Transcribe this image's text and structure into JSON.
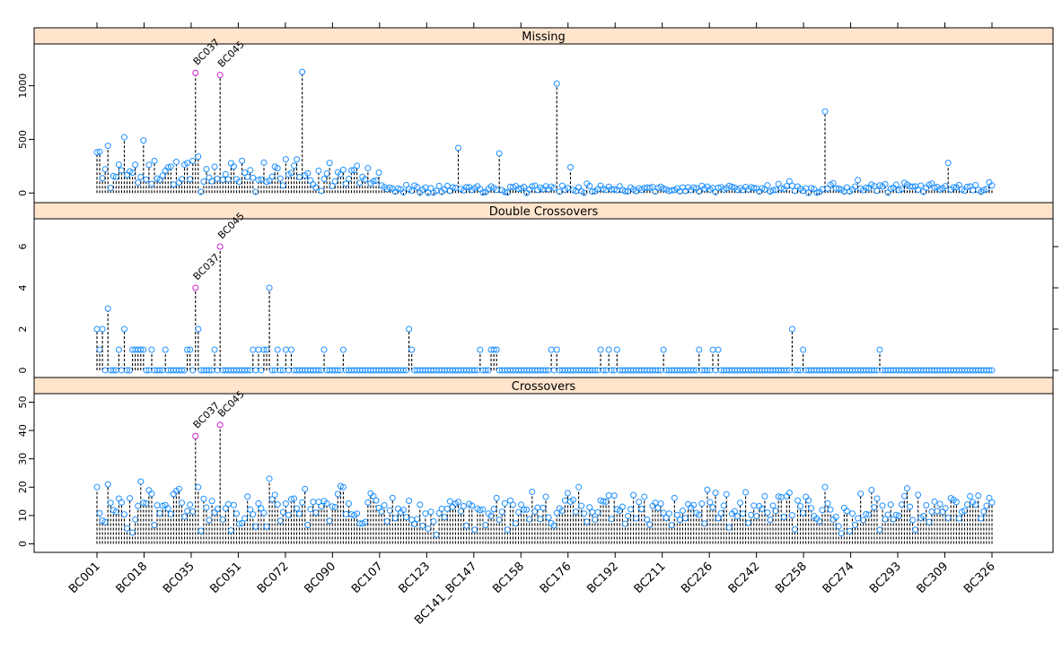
{
  "chart_data": {
    "type": "scatter",
    "style": "lollipop",
    "title": "",
    "xlabel": "",
    "ylabel": "",
    "grid": false,
    "colors": {
      "point": "#1e90ff",
      "highlight": "#d020d0",
      "strip_bg": "#ffe5cc",
      "stem": "#000000"
    },
    "n_individuals": 328,
    "x_tick_labels": [
      "BC001",
      "BC018",
      "BC035",
      "BC051",
      "BC072",
      "BC090",
      "BC107",
      "BC123",
      "BC141_BC147",
      "BC158",
      "BC176",
      "BC192",
      "BC211",
      "BC226",
      "BC242",
      "BC258",
      "BC274",
      "BC293",
      "BC309",
      "BC326"
    ],
    "panels": [
      {
        "strip": "Missing",
        "ylim": [
          -90,
          1390
        ],
        "yticks": [
          0,
          500,
          1000
        ],
        "tick_side": "left",
        "seed": 11,
        "segments": [
          {
            "from": 1,
            "to": 75,
            "mean": 180,
            "sd": 75
          },
          {
            "from": 76,
            "to": 104,
            "mean": 155,
            "sd": 60
          },
          {
            "from": 105,
            "to": 190,
            "mean": 45,
            "sd": 20
          },
          {
            "from": 191,
            "to": 260,
            "mean": 40,
            "sd": 17
          },
          {
            "from": 261,
            "to": 328,
            "mean": 45,
            "sd": 22
          }
        ],
        "peaks": [
          {
            "i": 37,
            "v": 1120,
            "highlight": true,
            "label": "BC037"
          },
          {
            "i": 46,
            "v": 1100,
            "highlight": true,
            "label": "BC045"
          },
          {
            "i": 76,
            "v": 1130
          },
          {
            "i": 169,
            "v": 1020
          },
          {
            "i": 267,
            "v": 760
          },
          {
            "i": 133,
            "v": 420
          },
          {
            "i": 148,
            "v": 370
          },
          {
            "i": 312,
            "v": 280
          },
          {
            "i": 11,
            "v": 520
          },
          {
            "i": 18,
            "v": 490
          },
          {
            "i": 5,
            "v": 440
          },
          {
            "i": 38,
            "v": 340
          },
          {
            "i": 54,
            "v": 300
          },
          {
            "i": 86,
            "v": 280
          },
          {
            "i": 22,
            "v": 300
          },
          {
            "i": 30,
            "v": 290
          },
          {
            "i": 174,
            "v": 240
          },
          {
            "i": 254,
            "v": 110
          },
          {
            "i": 279,
            "v": 120
          },
          {
            "i": 1,
            "v": 380
          },
          {
            "i": 2,
            "v": 385
          },
          {
            "i": 39,
            "v": 10
          },
          {
            "i": 59,
            "v": 10
          },
          {
            "i": 83,
            "v": 20
          },
          {
            "i": 130,
            "v": 20
          },
          {
            "i": 150,
            "v": 10
          }
        ]
      },
      {
        "strip": "Double Crossovers",
        "ylim": [
          -0.35,
          7.35
        ],
        "yticks": [
          0,
          2,
          4,
          6
        ],
        "tick_side": "right",
        "seed": 7,
        "segments": [
          {
            "from": 1,
            "to": 328,
            "mean": 0,
            "sd": 0
          }
        ],
        "peaks": [
          {
            "i": 1,
            "v": 2
          },
          {
            "i": 2,
            "v": 1
          },
          {
            "i": 3,
            "v": 2
          },
          {
            "i": 5,
            "v": 3
          },
          {
            "i": 9,
            "v": 1
          },
          {
            "i": 11,
            "v": 2
          },
          {
            "i": 14,
            "v": 1
          },
          {
            "i": 15,
            "v": 1
          },
          {
            "i": 16,
            "v": 1
          },
          {
            "i": 17,
            "v": 1
          },
          {
            "i": 18,
            "v": 1
          },
          {
            "i": 21,
            "v": 1
          },
          {
            "i": 26,
            "v": 1
          },
          {
            "i": 34,
            "v": 1
          },
          {
            "i": 35,
            "v": 1
          },
          {
            "i": 37,
            "v": 4,
            "highlight": true,
            "label": "BC037"
          },
          {
            "i": 38,
            "v": 2
          },
          {
            "i": 44,
            "v": 1
          },
          {
            "i": 46,
            "v": 6,
            "highlight": true,
            "label": "BC045"
          },
          {
            "i": 58,
            "v": 1
          },
          {
            "i": 60,
            "v": 1
          },
          {
            "i": 62,
            "v": 1
          },
          {
            "i": 63,
            "v": 1
          },
          {
            "i": 64,
            "v": 4
          },
          {
            "i": 67,
            "v": 1
          },
          {
            "i": 70,
            "v": 1
          },
          {
            "i": 72,
            "v": 1
          },
          {
            "i": 84,
            "v": 1
          },
          {
            "i": 91,
            "v": 1
          },
          {
            "i": 115,
            "v": 2
          },
          {
            "i": 116,
            "v": 1
          },
          {
            "i": 141,
            "v": 1
          },
          {
            "i": 145,
            "v": 1
          },
          {
            "i": 146,
            "v": 1
          },
          {
            "i": 147,
            "v": 1
          },
          {
            "i": 167,
            "v": 1
          },
          {
            "i": 169,
            "v": 1
          },
          {
            "i": 185,
            "v": 1
          },
          {
            "i": 188,
            "v": 1
          },
          {
            "i": 191,
            "v": 1
          },
          {
            "i": 208,
            "v": 1
          },
          {
            "i": 221,
            "v": 1
          },
          {
            "i": 226,
            "v": 1
          },
          {
            "i": 228,
            "v": 1
          },
          {
            "i": 255,
            "v": 2
          },
          {
            "i": 259,
            "v": 1
          },
          {
            "i": 287,
            "v": 1
          }
        ]
      },
      {
        "strip": "Crossovers",
        "ylim": [
          -3,
          53
        ],
        "yticks": [
          0,
          10,
          20,
          30,
          40,
          50
        ],
        "tick_side": "left",
        "seed": 3,
        "segments": [
          {
            "from": 1,
            "to": 328,
            "mean": 12,
            "sd": 3.2
          }
        ],
        "peaks": [
          {
            "i": 1,
            "v": 20
          },
          {
            "i": 5,
            "v": 21
          },
          {
            "i": 17,
            "v": 22
          },
          {
            "i": 37,
            "v": 38,
            "highlight": true,
            "label": "BC037"
          },
          {
            "i": 38,
            "v": 20
          },
          {
            "i": 46,
            "v": 42,
            "highlight": true,
            "label": "BC045"
          },
          {
            "i": 64,
            "v": 23
          },
          {
            "i": 91,
            "v": 20
          },
          {
            "i": 177,
            "v": 20
          },
          {
            "i": 227,
            "v": 18
          },
          {
            "i": 267,
            "v": 20
          },
          {
            "i": 284,
            "v": 19
          },
          {
            "i": 14,
            "v": 4
          },
          {
            "i": 139,
            "v": 5
          },
          {
            "i": 151,
            "v": 5
          },
          {
            "i": 300,
            "v": 5
          }
        ]
      }
    ]
  }
}
